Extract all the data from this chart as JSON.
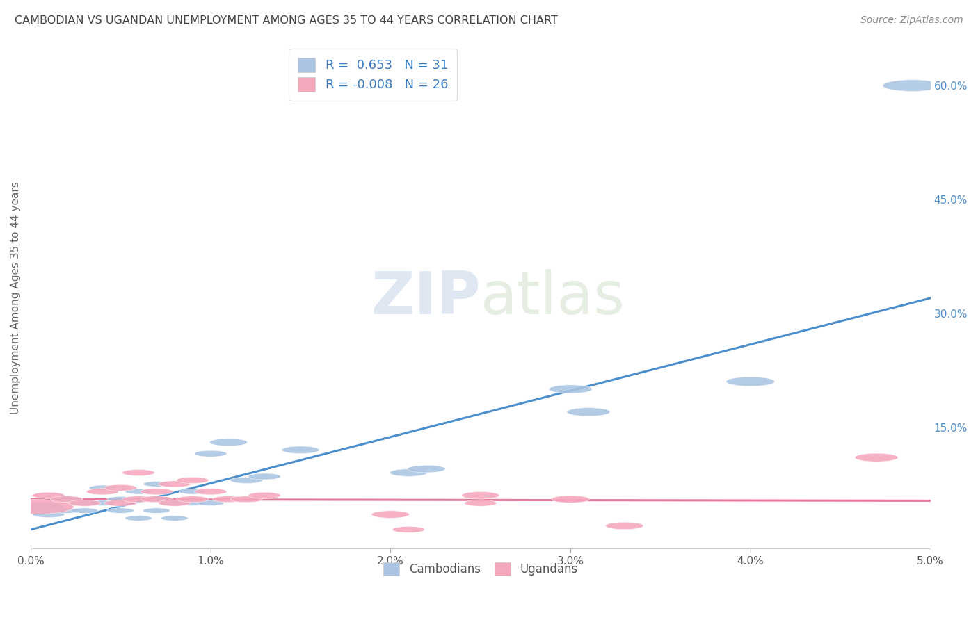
{
  "title": "CAMBODIAN VS UGANDAN UNEMPLOYMENT AMONG AGES 35 TO 44 YEARS CORRELATION CHART",
  "source": "Source: ZipAtlas.com",
  "ylabel": "Unemployment Among Ages 35 to 44 years",
  "xlim": [
    0.0,
    0.05
  ],
  "ylim": [
    -0.01,
    0.65
  ],
  "xtick_labels": [
    "0.0%",
    "1.0%",
    "2.0%",
    "3.0%",
    "4.0%",
    "5.0%"
  ],
  "xtick_vals": [
    0.0,
    0.01,
    0.02,
    0.03,
    0.04,
    0.05
  ],
  "ytick_labels": [
    "15.0%",
    "30.0%",
    "45.0%",
    "60.0%"
  ],
  "ytick_vals": [
    0.15,
    0.3,
    0.45,
    0.6
  ],
  "legend_label1": "R =  0.653   N = 31",
  "legend_label2": "R = -0.008   N = 26",
  "cambodian_color": "#aac4e2",
  "ugandan_color": "#f5a8bc",
  "cambodian_line_color": "#4a8fcb",
  "ugandan_line_color": "#e8789a",
  "background_color": "#ffffff",
  "grid_color": "#dddddd",
  "title_color": "#444444",
  "watermark_zip": "ZIP",
  "watermark_atlas": "atlas",
  "cambodian_x": [
    0.0005,
    0.001,
    0.002,
    0.002,
    0.003,
    0.003,
    0.004,
    0.004,
    0.005,
    0.005,
    0.006,
    0.006,
    0.007,
    0.007,
    0.007,
    0.008,
    0.008,
    0.009,
    0.009,
    0.01,
    0.01,
    0.011,
    0.012,
    0.013,
    0.015,
    0.021,
    0.022,
    0.03,
    0.031,
    0.04,
    0.049
  ],
  "cambodian_y": [
    0.045,
    0.035,
    0.055,
    0.04,
    0.05,
    0.04,
    0.07,
    0.05,
    0.055,
    0.04,
    0.03,
    0.065,
    0.055,
    0.04,
    0.075,
    0.05,
    0.03,
    0.065,
    0.05,
    0.115,
    0.05,
    0.13,
    0.08,
    0.085,
    0.12,
    0.09,
    0.095,
    0.2,
    0.17,
    0.21,
    0.6
  ],
  "cambodian_sizes": [
    18,
    12,
    12,
    10,
    10,
    10,
    10,
    10,
    10,
    10,
    10,
    10,
    10,
    10,
    10,
    10,
    10,
    10,
    10,
    12,
    10,
    14,
    12,
    12,
    14,
    14,
    14,
    16,
    16,
    18,
    22
  ],
  "ugandan_x": [
    0.0003,
    0.001,
    0.002,
    0.003,
    0.004,
    0.005,
    0.005,
    0.006,
    0.006,
    0.007,
    0.007,
    0.008,
    0.008,
    0.009,
    0.009,
    0.01,
    0.011,
    0.012,
    0.013,
    0.02,
    0.021,
    0.025,
    0.025,
    0.03,
    0.033,
    0.047
  ],
  "ugandan_y": [
    0.045,
    0.06,
    0.055,
    0.05,
    0.065,
    0.05,
    0.07,
    0.055,
    0.09,
    0.065,
    0.055,
    0.075,
    0.05,
    0.08,
    0.055,
    0.065,
    0.055,
    0.055,
    0.06,
    0.035,
    0.015,
    0.05,
    0.06,
    0.055,
    0.02,
    0.11
  ],
  "ugandan_sizes": [
    28,
    12,
    12,
    12,
    12,
    12,
    12,
    12,
    12,
    12,
    12,
    12,
    12,
    12,
    12,
    12,
    12,
    12,
    12,
    14,
    12,
    12,
    14,
    14,
    14,
    16
  ],
  "cambodian_trendline_x": [
    0.0,
    0.05
  ],
  "cambodian_trendline_y": [
    0.015,
    0.32
  ],
  "ugandan_trendline_x": [
    0.0,
    0.05
  ],
  "ugandan_trendline_y": [
    0.055,
    0.053
  ]
}
